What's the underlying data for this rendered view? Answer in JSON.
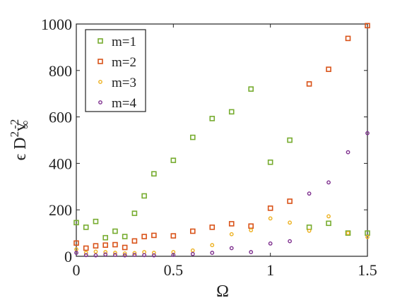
{
  "chart_data": {
    "type": "scatter",
    "xlabel": "Ω",
    "ylabel_parts": {
      "prefix": "ϵ D",
      "sup1": "2",
      "mid": "v",
      "sub": "∞",
      "sup2": "-2"
    },
    "xlim": [
      0,
      1.5
    ],
    "ylim": [
      0,
      1000
    ],
    "xticks": [
      0,
      0.5,
      1,
      1.5
    ],
    "xtick_labels": [
      "0",
      "0.5",
      "1",
      "1.5"
    ],
    "yticks": [
      0,
      200,
      400,
      600,
      800,
      1000
    ],
    "ytick_labels": [
      "0",
      "200",
      "400",
      "600",
      "800",
      "1000"
    ],
    "grid": false,
    "legend_position": "top-left",
    "series": [
      {
        "name": "m=1",
        "color": "#77ac30",
        "marker": "square",
        "x": [
          0,
          0.05,
          0.1,
          0.15,
          0.2,
          0.25,
          0.3,
          0.35,
          0.4,
          0.5,
          0.6,
          0.7,
          0.8,
          0.9,
          1.0,
          1.1,
          1.2,
          1.3,
          1.4,
          1.5
        ],
        "y": [
          145,
          125,
          150,
          80,
          108,
          85,
          185,
          260,
          355,
          413,
          512,
          593,
          622,
          720,
          405,
          500,
          125,
          142,
          100,
          100
        ]
      },
      {
        "name": "m=2",
        "color": "#d95319",
        "marker": "square",
        "x": [
          0,
          0.05,
          0.1,
          0.15,
          0.2,
          0.25,
          0.3,
          0.35,
          0.4,
          0.5,
          0.6,
          0.7,
          0.8,
          0.9,
          1.0,
          1.1,
          1.2,
          1.3,
          1.4,
          1.5
        ],
        "y": [
          57,
          35,
          45,
          48,
          50,
          38,
          66,
          85,
          90,
          88,
          108,
          125,
          140,
          130,
          207,
          237,
          742,
          805,
          938,
          993
        ]
      },
      {
        "name": "m=3",
        "color": "#edb120",
        "marker": "circle",
        "x": [
          0,
          0.05,
          0.1,
          0.15,
          0.2,
          0.25,
          0.3,
          0.35,
          0.4,
          0.5,
          0.6,
          0.7,
          0.8,
          0.9,
          1.0,
          1.1,
          1.2,
          1.3,
          1.4,
          1.5
        ],
        "y": [
          30,
          15,
          20,
          18,
          15,
          12,
          14,
          18,
          15,
          18,
          25,
          48,
          95,
          112,
          163,
          145,
          110,
          172,
          100,
          83
        ]
      },
      {
        "name": "m=4",
        "color": "#7e2f8e",
        "marker": "circle",
        "x": [
          0,
          0.05,
          0.1,
          0.15,
          0.2,
          0.25,
          0.3,
          0.35,
          0.4,
          0.5,
          0.6,
          0.7,
          0.8,
          0.9,
          1.0,
          1.1,
          1.2,
          1.3,
          1.4,
          1.5
        ],
        "y": [
          15,
          5,
          4,
          8,
          6,
          4,
          6,
          5,
          4,
          6,
          10,
          15,
          35,
          18,
          55,
          65,
          270,
          318,
          448,
          530
        ]
      }
    ]
  }
}
